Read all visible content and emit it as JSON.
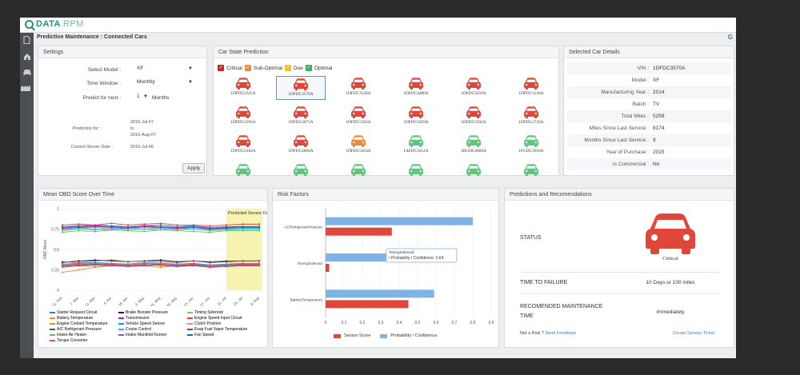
{
  "app": {
    "logo_text": "DATA",
    "logo_text2": "RPM",
    "breadcrumb": "Predictive Maintenance : Connected Cars",
    "help_icon": "help-icon"
  },
  "sidebar": {
    "icons": [
      "document-icon",
      "home-icon",
      "car-icon",
      "factory-icon"
    ]
  },
  "settings": {
    "title": "Settings",
    "model_label": "Select Model :",
    "model_value": "XF",
    "window_label": "Time Window :",
    "window_value": "Monthly",
    "predict_label": "Predict for next :",
    "predict_value": "1",
    "predict_unit": "Months",
    "prediction_for_label": "Prediction for :",
    "prediction_from": "2016-Jul-07",
    "prediction_to_word": "to",
    "prediction_to": "2016-Aug-07",
    "server_date_label": "Current Server Date :",
    "server_date": "2016-Jul-06",
    "apply_label": "Apply"
  },
  "car_state": {
    "title": "Car State Prediction",
    "legend": [
      {
        "label": "Critical",
        "color": "#e0473a"
      },
      {
        "label": "Sub-Optimal",
        "color": "#f08a35"
      },
      {
        "label": "Due",
        "color": "#f5d020"
      },
      {
        "label": "Optimal",
        "color": "#5bc97a"
      }
    ],
    "cars": [
      {
        "id": "1DFDC2325A",
        "state": "critical"
      },
      {
        "id": "1DFDC3570A",
        "state": "critical",
        "selected": true
      },
      {
        "id": "1DFDC3526A",
        "state": "critical"
      },
      {
        "id": "1DFDC4480A",
        "state": "critical"
      },
      {
        "id": "1DFDC5659A",
        "state": "critical"
      },
      {
        "id": "1DFDC1244A",
        "state": "critical"
      },
      {
        "id": "1DFDC2292A",
        "state": "critical"
      },
      {
        "id": "1DFDC3671A",
        "state": "critical"
      },
      {
        "id": "1DFDC5502A",
        "state": "critical"
      },
      {
        "id": "1DFDC5659A",
        "state": "critical"
      },
      {
        "id": "1DFDC5502A",
        "state": "critical"
      },
      {
        "id": "1DFDC2726A",
        "state": "critical"
      },
      {
        "id": "1DFDC4182A",
        "state": "critical"
      },
      {
        "id": "1DFDC4804A",
        "state": "critical"
      },
      {
        "id": "1DFDC5054A",
        "state": "suboptimal"
      },
      {
        "id": "1AFDC5012A",
        "state": "optimal"
      },
      {
        "id": "1BGDC4609A",
        "state": "optimal"
      },
      {
        "id": "1FGDC3910A",
        "state": "optimal"
      },
      {
        "id": "",
        "state": "optimal"
      },
      {
        "id": "",
        "state": "optimal"
      },
      {
        "id": "",
        "state": "optimal"
      },
      {
        "id": "",
        "state": "optimal"
      },
      {
        "id": "",
        "state": "optimal"
      },
      {
        "id": "",
        "state": "optimal"
      }
    ]
  },
  "details": {
    "title": "Selected Car Details",
    "rows": [
      {
        "label": "VIN :",
        "value": "1DFDC3570A"
      },
      {
        "label": "Model :",
        "value": "XF"
      },
      {
        "label": "Manufacturing Year :",
        "value": "2014"
      },
      {
        "label": "Batch :",
        "value": "TV"
      },
      {
        "label": "Total Miles :",
        "value": "5259"
      },
      {
        "label": "Miles Since Last Service :",
        "value": "8174"
      },
      {
        "label": "Months Since Last Service :",
        "value": "9"
      },
      {
        "label": "Year of Purchase :",
        "value": "2015"
      },
      {
        "label": "Is Commercial :",
        "value": "No"
      }
    ]
  },
  "obd": {
    "title": "Mean OBD Score Over Time",
    "predicted_label": "Predicted Sensor Data",
    "legend": [
      {
        "label": "Starter Request Circuit",
        "color": "#3b79c4"
      },
      {
        "label": "Brake Booster Pressure",
        "color": "#222222"
      },
      {
        "label": "Timing Solenoid",
        "color": "#8bc34a"
      },
      {
        "label": "Battery Temperature",
        "color": "#f08a35"
      },
      {
        "label": "Transmission",
        "color": "#9c27b0"
      },
      {
        "label": "Engine Speed Input Circuit",
        "color": "#e0473a"
      },
      {
        "label": "Engine Coolant Temperature",
        "color": "#d4a017"
      },
      {
        "label": "Vehicle Speed Sensor",
        "color": "#1e88e5"
      },
      {
        "label": "Clutch Position",
        "color": "#ff7b9c"
      },
      {
        "label": "A/C Refrigerant Pressure",
        "color": "#555555"
      },
      {
        "label": "Cruise Control",
        "color": "#26c6da"
      },
      {
        "label": "Evap Fuel Vapor Temperature",
        "color": "#795548"
      },
      {
        "label": "Intake Air Heater",
        "color": "#66bb6a"
      },
      {
        "label": "Intake Manifold Runner",
        "color": "#ab47bc"
      },
      {
        "label": "Fan Speed",
        "color": "#1565c0"
      },
      {
        "label": "Torque Converter",
        "color": "#ef5350"
      }
    ]
  },
  "chart_data": [
    {
      "type": "line",
      "title": "Mean OBD Score Over Time",
      "xlabel": "",
      "ylabel": "OBD Mean",
      "ylim": [
        0,
        1
      ],
      "yticks": [
        "0",
        "0.25",
        "0.5",
        "0.75",
        "1"
      ],
      "categories": [
        "21. Feb",
        "7. Mar",
        "21. Mar",
        "4. Apr",
        "18. Apr",
        "2. May",
        "16. May",
        "30. May",
        "13. Jun",
        "27. Jun",
        "11. Jul",
        "25. Jul",
        "8. Aug"
      ],
      "series": [
        {
          "name": "Starter Request Circuit",
          "values": [
            0.78,
            0.79,
            0.8,
            0.79,
            0.78,
            0.79,
            0.8,
            0.78,
            0.79,
            0.77,
            0.78,
            0.78,
            0.78
          ]
        },
        {
          "name": "Brake Booster Pressure",
          "values": [
            0.34,
            0.36,
            0.37,
            0.36,
            0.35,
            0.36,
            0.37,
            0.35,
            0.36,
            0.34,
            0.35,
            0.36,
            0.36
          ]
        },
        {
          "name": "Timing Solenoid",
          "values": [
            0.73,
            0.75,
            0.74,
            0.76,
            0.74,
            0.75,
            0.76,
            0.74,
            0.75,
            0.73,
            0.74,
            0.75,
            0.75
          ]
        },
        {
          "name": "Battery Temperature",
          "values": [
            0.22,
            0.25,
            0.28,
            0.3,
            0.32,
            0.3,
            0.28,
            0.3,
            0.32,
            0.3,
            0.31,
            0.32,
            0.32
          ]
        },
        {
          "name": "Transmission",
          "values": [
            0.77,
            0.78,
            0.79,
            0.78,
            0.77,
            0.79,
            0.78,
            0.77,
            0.78,
            0.76,
            0.77,
            0.78,
            0.78
          ]
        },
        {
          "name": "Engine Speed Input Circuit",
          "values": [
            0.8,
            0.81,
            0.8,
            0.82,
            0.8,
            0.81,
            0.82,
            0.8,
            0.8,
            0.79,
            0.8,
            0.81,
            0.81
          ]
        },
        {
          "name": "Engine Coolant Temperature",
          "values": [
            0.28,
            0.3,
            0.29,
            0.31,
            0.3,
            0.32,
            0.3,
            0.29,
            0.31,
            0.3,
            0.31,
            0.31,
            0.31
          ]
        },
        {
          "name": "Vehicle Speed Sensor",
          "values": [
            0.32,
            0.33,
            0.34,
            0.33,
            0.32,
            0.34,
            0.33,
            0.32,
            0.33,
            0.31,
            0.32,
            0.33,
            0.33
          ]
        },
        {
          "name": "Clutch Position",
          "values": [
            0.75,
            0.76,
            0.77,
            0.75,
            0.76,
            0.77,
            0.76,
            0.75,
            0.77,
            0.75,
            0.76,
            0.76,
            0.76
          ]
        },
        {
          "name": "A/C Refrigerant Pressure",
          "values": [
            0.3,
            0.31,
            0.32,
            0.31,
            0.3,
            0.31,
            0.32,
            0.3,
            0.31,
            0.29,
            0.3,
            0.31,
            0.31
          ]
        },
        {
          "name": "Cruise Control",
          "values": [
            0.74,
            0.76,
            0.75,
            0.74,
            0.76,
            0.75,
            0.74,
            0.76,
            0.75,
            0.74,
            0.75,
            0.75,
            0.75
          ]
        },
        {
          "name": "Evap Fuel Vapor Temperature",
          "values": [
            0.35,
            0.34,
            0.36,
            0.37,
            0.35,
            0.36,
            0.35,
            0.34,
            0.36,
            0.35,
            0.36,
            0.36,
            0.36
          ]
        },
        {
          "name": "Intake Air Heater",
          "values": [
            0.71,
            0.73,
            0.72,
            0.74,
            0.73,
            0.72,
            0.74,
            0.73,
            0.72,
            0.71,
            0.73,
            0.73,
            0.73
          ]
        },
        {
          "name": "Intake Manifold Runner",
          "values": [
            0.29,
            0.3,
            0.31,
            0.3,
            0.29,
            0.3,
            0.31,
            0.29,
            0.3,
            0.28,
            0.29,
            0.3,
            0.3
          ]
        },
        {
          "name": "Fan Speed",
          "values": [
            0.76,
            0.77,
            0.78,
            0.77,
            0.76,
            0.78,
            0.77,
            0.76,
            0.77,
            0.75,
            0.76,
            0.77,
            0.77
          ]
        },
        {
          "name": "Torque Converter",
          "values": [
            0.31,
            0.32,
            0.33,
            0.32,
            0.31,
            0.33,
            0.32,
            0.31,
            0.32,
            0.3,
            0.31,
            0.32,
            0.32
          ]
        }
      ],
      "predicted_from_index": 10,
      "annotation": "Predicted Sensor Data"
    },
    {
      "type": "bar",
      "orientation": "horizontal",
      "title": "Risk Factors",
      "categories": [
        "ACRefrigerantPressure",
        "TimingSolenoid",
        "BatteryTemperature"
      ],
      "series": [
        {
          "name": "Sensor Score",
          "color": "#e0473a",
          "values": [
            0.36,
            0.02,
            0.45
          ]
        },
        {
          "name": "Probability / Confidence",
          "color": "#7fb3e6",
          "values": [
            0.8,
            0.64,
            0.59
          ]
        }
      ],
      "xlim": [
        0,
        0.9
      ],
      "xticks": [
        "0",
        "0.1",
        "0.2",
        "0.3",
        "0.4",
        "0.5",
        "0.6",
        "0.7",
        "0.8",
        "0.9"
      ],
      "tooltip_title": "TimingSolenoid",
      "tooltip_text": "Probability / Confidence: 0.64"
    }
  ],
  "risk": {
    "title": "Risk Factors",
    "legend_sensor": "Sensor Score",
    "legend_prob": "Probability / Confidence"
  },
  "predictions": {
    "title": "Predictions and Recomendations",
    "status_label": "STATUS",
    "status_value": "Critical",
    "ttf_label": "TIME TO FAILURE",
    "ttf_value": "10 Days or 100 miles",
    "maint_label_1": "RECOMENDED MAINTENANCE",
    "maint_label_2": "TIME",
    "maint_value": "Immediately",
    "not_risk": "Not a Risk ?",
    "feedback_link": "Send Feedback",
    "create_ticket": "Create Service Ticket"
  }
}
